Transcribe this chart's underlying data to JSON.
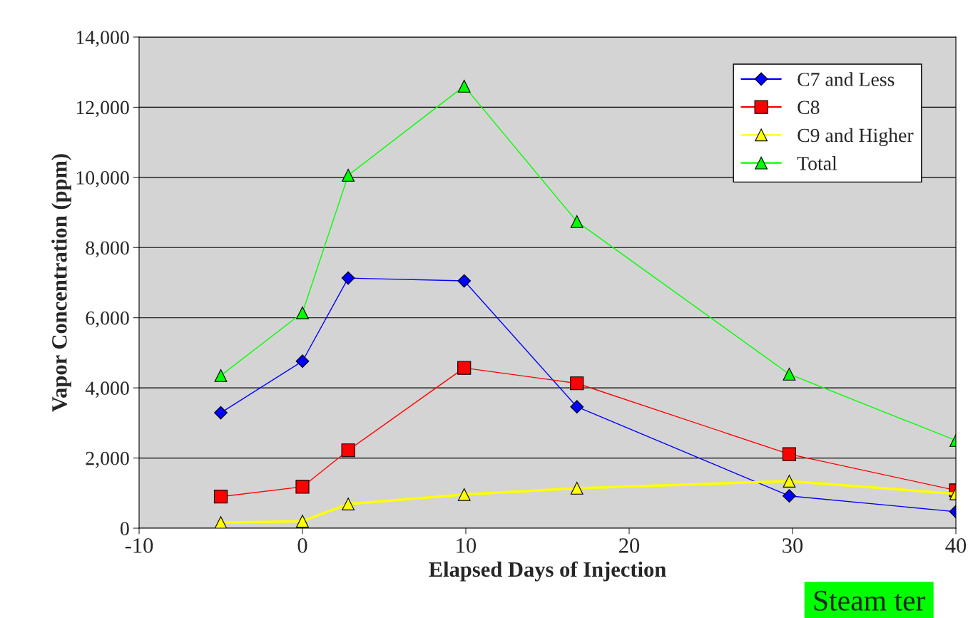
{
  "chart_data": {
    "type": "line",
    "xlabel": "Elapsed Days of Injection",
    "ylabel": "Vapor Concentration (ppm)",
    "x": [
      -5,
      0,
      2.8,
      9.9,
      16.8,
      29.8,
      40
    ],
    "series": [
      {
        "name": "C7 and Less",
        "color": "#0000ff",
        "marker": "diamond",
        "values": [
          3290,
          4760,
          7130,
          7050,
          3460,
          920,
          470
        ]
      },
      {
        "name": "C8",
        "color": "#ff0000",
        "marker": "square",
        "values": [
          900,
          1180,
          2220,
          4570,
          4130,
          2110,
          1080
        ]
      },
      {
        "name": "C9 and Higher",
        "color": "#ffff00",
        "marker": "triangle",
        "values": [
          160,
          200,
          690,
          960,
          1140,
          1340,
          980
        ]
      },
      {
        "name": "Total",
        "color": "#00ff00",
        "marker": "triangle",
        "values": [
          4350,
          6140,
          10060,
          12600,
          8740,
          4390,
          2500
        ]
      }
    ],
    "xlim": [
      -10,
      40
    ],
    "xticks": [
      -10,
      0,
      10,
      20,
      30,
      40
    ],
    "ylim": [
      0,
      14000
    ],
    "yticks": [
      {
        "value": 0,
        "label": "0"
      },
      {
        "value": 2000,
        "label": "2,000"
      },
      {
        "value": 4000,
        "label": "4,000"
      },
      {
        "value": 6000,
        "label": "6,000"
      },
      {
        "value": 8000,
        "label": "8,000"
      },
      {
        "value": 10000,
        "label": "10,000"
      },
      {
        "value": 12000,
        "label": "12,000"
      },
      {
        "value": 14000,
        "label": "14,000"
      }
    ],
    "grid": "y",
    "legend": "top right",
    "line_style": "solid",
    "annotations": [
      "Steam ter"
    ]
  }
}
